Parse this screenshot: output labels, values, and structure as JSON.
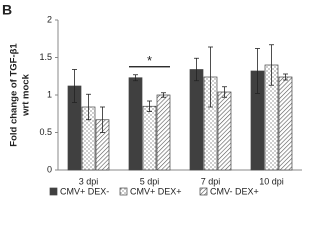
{
  "chart_data": {
    "type": "bar",
    "panel_label": "B",
    "y_label": [
      "Fold change of TGF-β1",
      "wrt mock"
    ],
    "categories": [
      "3 dpi",
      "5 dpi",
      "7 dpi",
      "10 dpi"
    ],
    "series": [
      {
        "name": "CMV+ DEX-",
        "color": "#404040",
        "pattern": "solid",
        "values": [
          1.12,
          1.23,
          1.34,
          1.32
        ],
        "errors": [
          0.22,
          0.04,
          0.15,
          0.3
        ]
      },
      {
        "name": "CMV+ DEX+",
        "color": "#ffffff",
        "pattern": "dots",
        "values": [
          0.84,
          0.85,
          1.24,
          1.4
        ],
        "errors": [
          0.17,
          0.07,
          0.4,
          0.27
        ]
      },
      {
        "name": "CMV- DEX+",
        "color": "#ffffff",
        "pattern": "hatch",
        "values": [
          0.67,
          1.0,
          1.04,
          1.24
        ],
        "errors": [
          0.17,
          0.03,
          0.07,
          0.04
        ]
      }
    ],
    "annotation": {
      "text": "*",
      "category": 1
    },
    "ylim": [
      0,
      2
    ],
    "yticks": [
      0,
      0.5,
      1,
      1.5,
      2
    ],
    "grid": false
  }
}
